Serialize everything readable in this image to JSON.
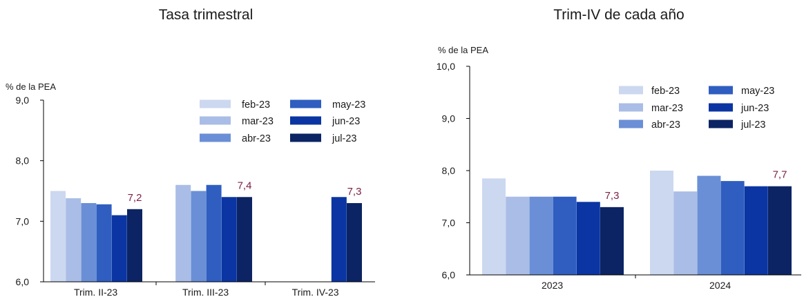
{
  "colors": {
    "feb-23": "#ccd8f0",
    "mar-23": "#aabde6",
    "abr-23": "#6a8fd6",
    "may-23": "#2f5ec0",
    "jun-23": "#0a35a2",
    "jul-23": "#0c2463",
    "label": "#7a1f44",
    "axis": "#000000"
  },
  "chart_data": [
    {
      "type": "bar",
      "title": "Tasa trimestral",
      "ylabel": "% de la PEA",
      "ylim": [
        6.0,
        9.0
      ],
      "yticks": [
        "6,0",
        "7,0",
        "8,0",
        "9,0"
      ],
      "categories": [
        "Trim. II-23",
        "Trim. III-23",
        "Trim. IV-23"
      ],
      "series": [
        {
          "name": "feb-23",
          "values": [
            7.5,
            null,
            null
          ]
        },
        {
          "name": "mar-23",
          "values": [
            7.38,
            7.6,
            null
          ]
        },
        {
          "name": "abr-23",
          "values": [
            7.3,
            7.5,
            null
          ]
        },
        {
          "name": "may-23",
          "values": [
            7.28,
            7.6,
            null
          ]
        },
        {
          "name": "jun-23",
          "values": [
            7.1,
            7.4,
            7.4
          ]
        },
        {
          "name": "jul-23",
          "values": [
            7.2,
            7.4,
            7.3
          ]
        }
      ],
      "data_labels": [
        "7,2",
        "7,4",
        "7,3"
      ],
      "legend": {
        "position": "top-right",
        "entries": [
          "feb-23",
          "mar-23",
          "abr-23",
          "may-23",
          "jun-23",
          "jul-23"
        ]
      }
    },
    {
      "type": "bar",
      "title": "Trim-IV de cada año",
      "ylabel": "% de la PEA",
      "ylim": [
        6.0,
        10.0
      ],
      "yticks": [
        "6,0",
        "7,0",
        "8,0",
        "9,0",
        "10,0"
      ],
      "categories": [
        "2023",
        "2024"
      ],
      "series": [
        {
          "name": "feb-23",
          "values": [
            7.85,
            8.0
          ]
        },
        {
          "name": "mar-23",
          "values": [
            7.5,
            7.6
          ]
        },
        {
          "name": "abr-23",
          "values": [
            7.5,
            7.9
          ]
        },
        {
          "name": "may-23",
          "values": [
            7.5,
            7.8
          ]
        },
        {
          "name": "jun-23",
          "values": [
            7.4,
            7.7
          ]
        },
        {
          "name": "jul-23",
          "values": [
            7.3,
            7.7
          ]
        }
      ],
      "data_labels": [
        "7,3",
        "7,7"
      ],
      "legend": {
        "position": "top-right",
        "entries": [
          "feb-23",
          "mar-23",
          "abr-23",
          "may-23",
          "jun-23",
          "jul-23"
        ]
      }
    }
  ]
}
